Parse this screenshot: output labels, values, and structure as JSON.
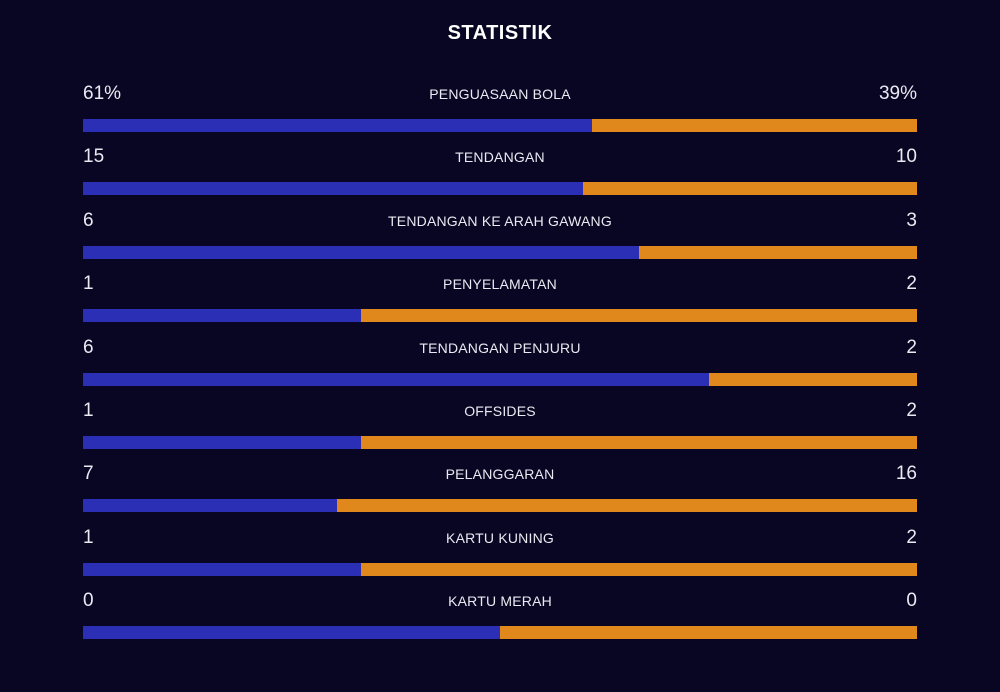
{
  "title": "STATISTIK",
  "colors": {
    "home": "#2b2fb5",
    "away": "#e0881c",
    "background": "#080622"
  },
  "stats": [
    {
      "label": "PENGUASAAN BOLA",
      "home": "61%",
      "away": "39%",
      "home_share": 0.61
    },
    {
      "label": "TENDANGAN",
      "home": "15",
      "away": "10",
      "home_share": 0.6
    },
    {
      "label": "TENDANGAN KE ARAH GAWANG",
      "home": "6",
      "away": "3",
      "home_share": 0.6667
    },
    {
      "label": "PENYELAMATAN",
      "home": "1",
      "away": "2",
      "home_share": 0.3333
    },
    {
      "label": "TENDANGAN PENJURU",
      "home": "6",
      "away": "2",
      "home_share": 0.75
    },
    {
      "label": "OFFSIDES",
      "home": "1",
      "away": "2",
      "home_share": 0.3333
    },
    {
      "label": "PELANGGARAN",
      "home": "7",
      "away": "16",
      "home_share": 0.3043
    },
    {
      "label": "KARTU KUNING",
      "home": "1",
      "away": "2",
      "home_share": 0.3333
    },
    {
      "label": "KARTU MERAH",
      "home": "0",
      "away": "0",
      "home_share": 0.5
    }
  ]
}
